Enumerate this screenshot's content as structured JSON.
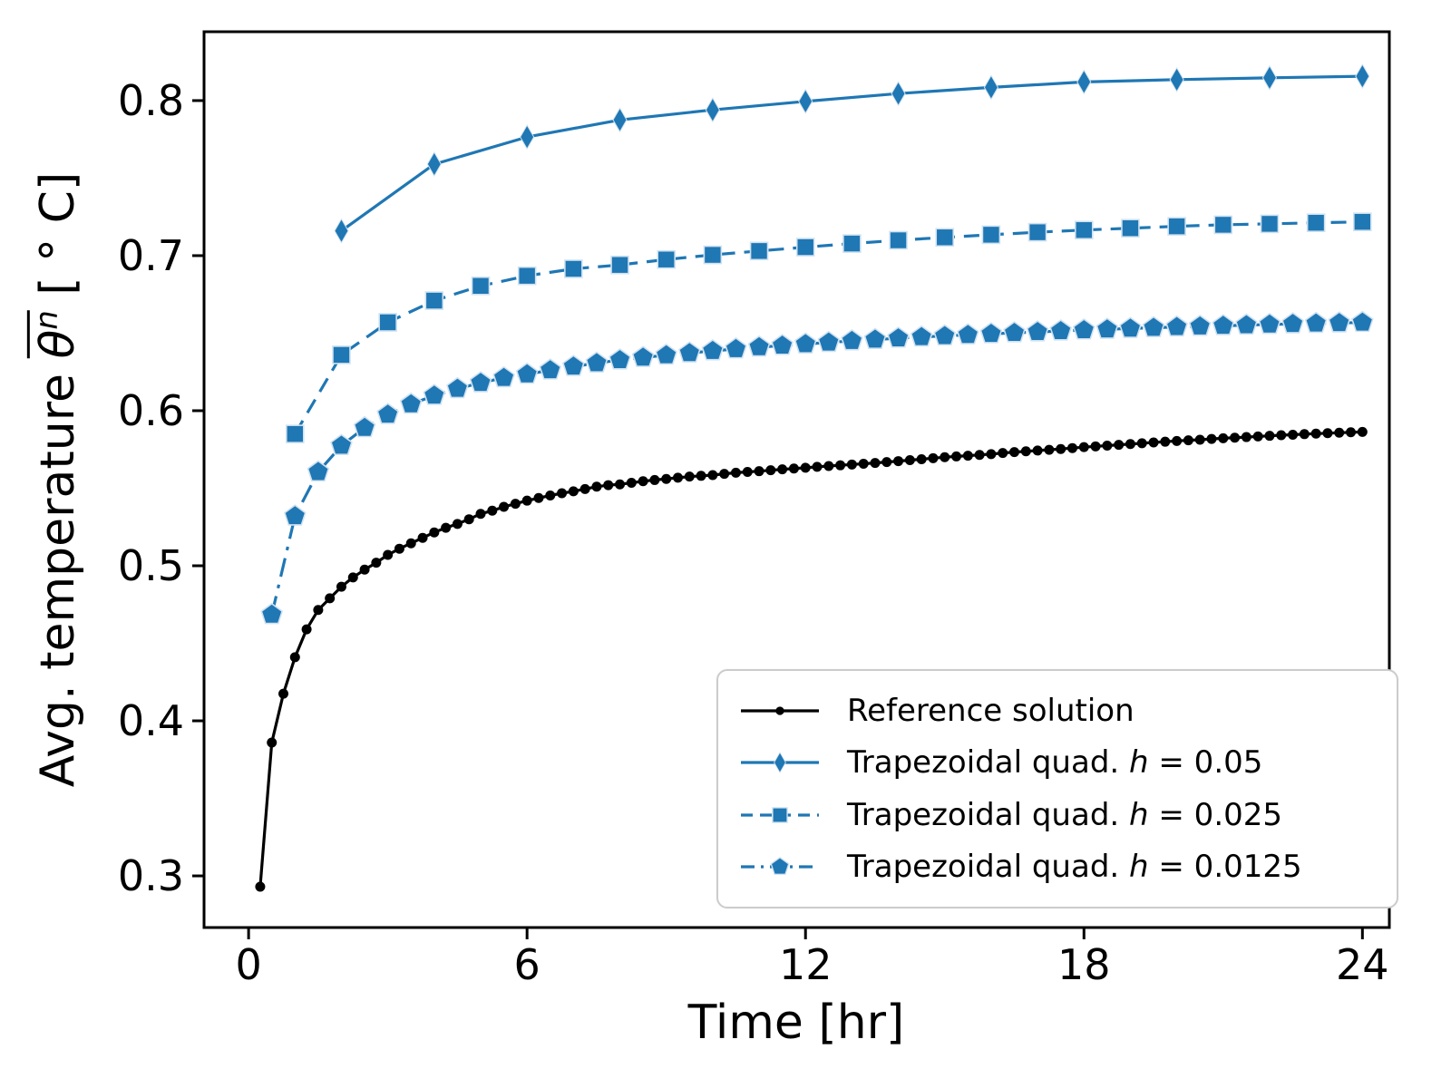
{
  "figure": {
    "background": "#ffffff",
    "axes_color": "#000000",
    "accent_blue": "#1f77b4",
    "marker_edge": "#cfe2f1",
    "legend_border": "#cccccc"
  },
  "chart_data": {
    "type": "line",
    "title": "",
    "xlabel": "Time [hr]",
    "ylabel": "Avg. temperature θ̅ⁿ [° C]",
    "ylabel_parts": {
      "prefix": "Avg. temperature ",
      "symbol": "θ",
      "superscript": "n",
      "suffix": " [ ° C]"
    },
    "xlim": [
      -0.96,
      24.58
    ],
    "ylim": [
      0.2667,
      0.8444
    ],
    "xticks": [
      0,
      6,
      12,
      18,
      24
    ],
    "yticks": [
      0.3,
      0.4,
      0.5,
      0.6,
      0.7,
      0.8
    ],
    "grid": false,
    "legend_position": "lower right",
    "series": [
      {
        "name": "Reference solution",
        "legend_plain": "Reference solution",
        "legend_var": "",
        "legend_rest": "",
        "color": "#000000",
        "linestyle": "solid",
        "marker": "dot",
        "x": [
          0.25,
          0.5,
          0.75,
          1,
          1.25,
          1.5,
          1.75,
          2,
          2.25,
          2.5,
          2.75,
          3,
          3.25,
          3.5,
          3.75,
          4,
          4.25,
          4.5,
          4.75,
          5,
          5.25,
          5.5,
          5.75,
          6,
          6.25,
          6.5,
          6.75,
          7,
          7.25,
          7.5,
          7.75,
          8,
          8.25,
          8.5,
          8.75,
          9,
          9.25,
          9.5,
          9.75,
          10,
          10.25,
          10.5,
          10.75,
          11,
          11.25,
          11.5,
          11.75,
          12,
          12.25,
          12.5,
          12.75,
          13,
          13.25,
          13.5,
          13.75,
          14,
          14.25,
          14.5,
          14.75,
          15,
          15.25,
          15.5,
          15.75,
          16,
          16.25,
          16.5,
          16.75,
          17,
          17.25,
          17.5,
          17.75,
          18,
          18.25,
          18.5,
          18.75,
          19,
          19.25,
          19.5,
          19.75,
          20,
          20.25,
          20.5,
          20.75,
          21,
          21.25,
          21.5,
          21.75,
          22,
          22.25,
          22.5,
          22.75,
          23,
          23.25,
          23.5,
          23.75,
          24
        ],
        "y": [
          0.293,
          0.386,
          0.4175,
          0.441,
          0.459,
          0.4715,
          0.479,
          0.4865,
          0.4925,
          0.4975,
          0.502,
          0.507,
          0.511,
          0.5145,
          0.518,
          0.5215,
          0.5245,
          0.527,
          0.53,
          0.5335,
          0.5355,
          0.538,
          0.54,
          0.542,
          0.5437,
          0.5453,
          0.5468,
          0.548,
          0.5495,
          0.551,
          0.552,
          0.5525,
          0.5535,
          0.5545,
          0.5553,
          0.556,
          0.5568,
          0.5575,
          0.558,
          0.5585,
          0.5593,
          0.56,
          0.5605,
          0.561,
          0.5616,
          0.5622,
          0.5627,
          0.5632,
          0.5638,
          0.5643,
          0.5648,
          0.5653,
          0.5658,
          0.5663,
          0.5669,
          0.5675,
          0.5681,
          0.5687,
          0.5694,
          0.57,
          0.5705,
          0.571,
          0.5715,
          0.572,
          0.5727,
          0.5733,
          0.5738,
          0.5743,
          0.5748,
          0.5753,
          0.5759,
          0.5765,
          0.577,
          0.5775,
          0.578,
          0.5785,
          0.579,
          0.5795,
          0.58,
          0.5805,
          0.5809,
          0.5813,
          0.5818,
          0.5822,
          0.5826,
          0.583,
          0.5834,
          0.5838,
          0.5842,
          0.5845,
          0.5849,
          0.5852,
          0.5855,
          0.5858,
          0.5861,
          0.5863
        ]
      },
      {
        "name": "Trapezoidal quad. h = 0.05",
        "legend_plain": "Trapezoidal quad. ",
        "legend_var": "h",
        "legend_rest": " = 0.05",
        "color": "#1f77b4",
        "linestyle": "solid",
        "marker": "thin-diamond",
        "x": [
          2,
          4,
          6,
          8,
          10,
          12,
          14,
          16,
          18,
          20,
          22,
          24
        ],
        "y": [
          0.716,
          0.759,
          0.7765,
          0.7875,
          0.794,
          0.7995,
          0.8045,
          0.8085,
          0.812,
          0.8135,
          0.8147,
          0.8157
        ]
      },
      {
        "name": "Trapezoidal quad. h = 0.025",
        "legend_plain": "Trapezoidal quad. ",
        "legend_var": "h",
        "legend_rest": " = 0.025",
        "color": "#1f77b4",
        "linestyle": "dashed",
        "marker": "square",
        "x": [
          1,
          2,
          3,
          4,
          5,
          6,
          7,
          8,
          9,
          10,
          11,
          12,
          13,
          14,
          15,
          16,
          17,
          18,
          19,
          20,
          21,
          22,
          23,
          24
        ],
        "y": [
          0.585,
          0.636,
          0.657,
          0.671,
          0.6805,
          0.687,
          0.6915,
          0.694,
          0.6975,
          0.7005,
          0.703,
          0.7055,
          0.7078,
          0.7099,
          0.7118,
          0.7135,
          0.7151,
          0.7165,
          0.7177,
          0.7189,
          0.7199,
          0.7205,
          0.7212,
          0.7218
        ]
      },
      {
        "name": "Trapezoidal quad. h = 0.0125",
        "legend_plain": "Trapezoidal quad. ",
        "legend_var": "h",
        "legend_rest": " = 0.0125",
        "color": "#1f77b4",
        "linestyle": "dashdot",
        "marker": "pentagon",
        "x": [
          0.5,
          1,
          1.5,
          2,
          2.5,
          3,
          3.5,
          4,
          4.5,
          5,
          5.5,
          6,
          6.5,
          7,
          7.5,
          8,
          8.5,
          9,
          9.5,
          10,
          10.5,
          11,
          11.5,
          12,
          12.5,
          13,
          13.5,
          14,
          14.5,
          15,
          15.5,
          16,
          16.5,
          17,
          17.5,
          18,
          18.5,
          19,
          19.5,
          20,
          20.5,
          21,
          21.5,
          22,
          22.5,
          23,
          23.5,
          24
        ],
        "y": [
          0.4685,
          0.532,
          0.5605,
          0.5775,
          0.589,
          0.5975,
          0.6042,
          0.6098,
          0.6142,
          0.618,
          0.6212,
          0.6235,
          0.6262,
          0.6285,
          0.6307,
          0.6327,
          0.6343,
          0.6358,
          0.6372,
          0.6386,
          0.6398,
          0.641,
          0.642,
          0.643,
          0.644,
          0.645,
          0.6459,
          0.6467,
          0.6475,
          0.6482,
          0.6489,
          0.6496,
          0.6502,
          0.6508,
          0.6514,
          0.652,
          0.6525,
          0.653,
          0.6535,
          0.654,
          0.6544,
          0.6548,
          0.6552,
          0.6556,
          0.656,
          0.6563,
          0.6566,
          0.6569
        ]
      }
    ]
  }
}
